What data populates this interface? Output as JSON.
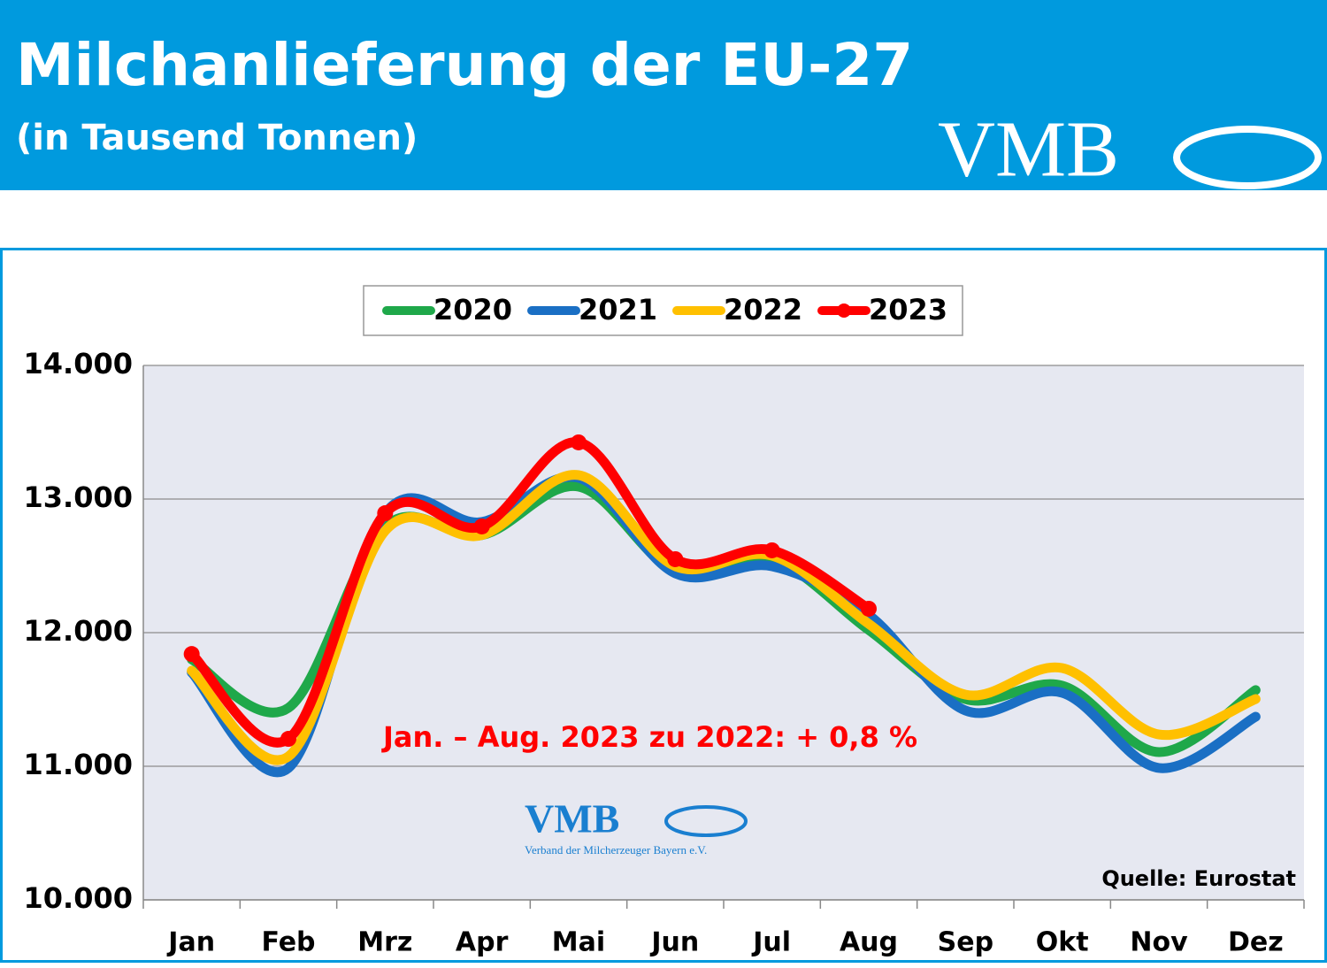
{
  "chart_data": {
    "type": "line",
    "title": "Milchanlieferung der EU-27",
    "subtitle": "(in Tausend Tonnen)",
    "logo": "VMB",
    "watermark": "VMB",
    "watermark_subtitle": "Verband der Milcherzeuger Bayern e.V.",
    "annotation": "Jan. – Aug. 2023 zu 2022: + 0,8 %",
    "source": "Quelle: Eurostat",
    "categories": [
      "Jan",
      "Feb",
      "Mrz",
      "Apr",
      "Mai",
      "Jun",
      "Jul",
      "Aug",
      "Sep",
      "Okt",
      "Nov",
      "Dez"
    ],
    "series": [
      {
        "name": "2020",
        "color": "#1fa84a",
        "values": [
          11800,
          11437,
          12795,
          12730,
          13093,
          12464,
          12550,
          12020,
          11503,
          11603,
          11106,
          11570
        ]
      },
      {
        "name": "2021",
        "color": "#1a6fc4",
        "values": [
          11702,
          10987,
          12894,
          12828,
          13159,
          12444,
          12497,
          12132,
          11417,
          11550,
          10987,
          11371
        ]
      },
      {
        "name": "2022",
        "color": "#ffc000",
        "values": [
          11715,
          11073,
          12762,
          12730,
          13179,
          12497,
          12576,
          12066,
          11536,
          11735,
          11238,
          11503
        ]
      },
      {
        "name": "2023",
        "color": "#ff0000",
        "values": [
          11840,
          11205,
          12894,
          12795,
          13424,
          12550,
          12616,
          12179,
          null,
          null,
          null,
          null
        ]
      }
    ],
    "ylim": [
      10000,
      14000
    ],
    "yticks": [
      {
        "value": 10000,
        "label": "10.000"
      },
      {
        "value": 11000,
        "label": "11.000"
      },
      {
        "value": 12000,
        "label": "12.000"
      },
      {
        "value": 13000,
        "label": "13.000"
      },
      {
        "value": 14000,
        "label": "14.000"
      }
    ],
    "grid": true,
    "legend": "top"
  }
}
